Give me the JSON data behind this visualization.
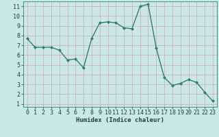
{
  "x": [
    0,
    1,
    2,
    3,
    4,
    5,
    6,
    7,
    8,
    9,
    10,
    11,
    12,
    13,
    14,
    15,
    16,
    17,
    18,
    19,
    20,
    21,
    22,
    23
  ],
  "y": [
    7.7,
    6.8,
    6.8,
    6.8,
    6.5,
    5.5,
    5.6,
    4.7,
    7.7,
    9.3,
    9.4,
    9.3,
    8.8,
    8.7,
    11.0,
    11.2,
    6.7,
    3.7,
    2.9,
    3.1,
    3.5,
    3.2,
    2.2,
    1.3
  ],
  "line_color": "#2e7d6e",
  "marker": "D",
  "marker_size": 2.0,
  "bg_color": "#cce8e4",
  "grid_color_major": "#c8a8a8",
  "grid_color_minor": "#ddd0d0",
  "xlabel": "Humidex (Indice chaleur)",
  "xlim": [
    -0.5,
    23.5
  ],
  "ylim": [
    0.7,
    11.5
  ],
  "yticks": [
    1,
    2,
    3,
    4,
    5,
    6,
    7,
    8,
    9,
    10,
    11
  ],
  "xticks": [
    0,
    1,
    2,
    3,
    4,
    5,
    6,
    7,
    8,
    9,
    10,
    11,
    12,
    13,
    14,
    15,
    16,
    17,
    18,
    19,
    20,
    21,
    22,
    23
  ],
  "xlabel_fontsize": 6.5,
  "tick_fontsize": 6.0,
  "linewidth": 1.0,
  "spine_color": "#2e7d6e",
  "label_color": "#1a4040"
}
